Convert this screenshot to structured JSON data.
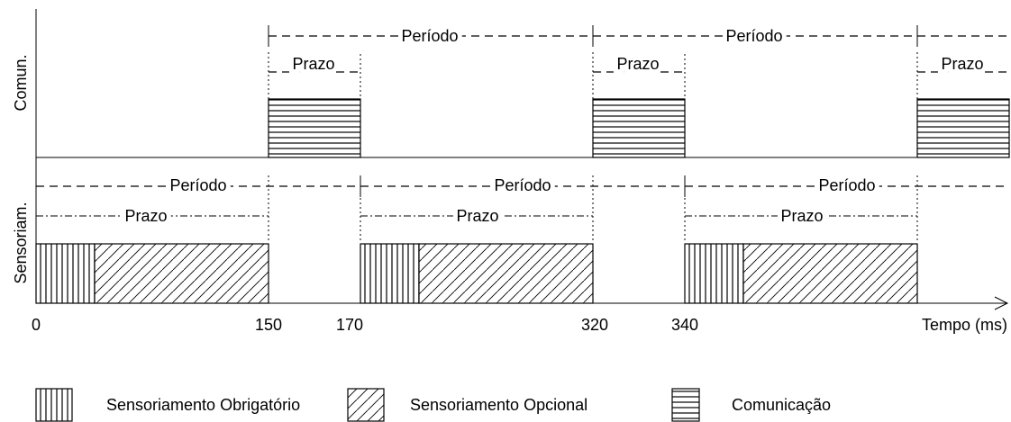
{
  "axis": {
    "comm_label": "Comun.",
    "sens_label": "Sensoriam.",
    "time_label": "Tempo (ms)",
    "tick_labels": [
      "0",
      "150",
      "170",
      "320",
      "340"
    ]
  },
  "comm": {
    "period_labels": [
      "Período",
      "Período"
    ],
    "deadline_labels": [
      "Prazo",
      "Prazo",
      "Prazo"
    ]
  },
  "sens": {
    "period_labels": [
      "Período",
      "Período",
      "Período"
    ],
    "deadline_labels": [
      "Prazo",
      "Prazo",
      "Prazo"
    ]
  },
  "legend": [
    "Sensoriamento Obrigatório",
    "Sensoriamento Opcional",
    "Comunicação"
  ]
}
